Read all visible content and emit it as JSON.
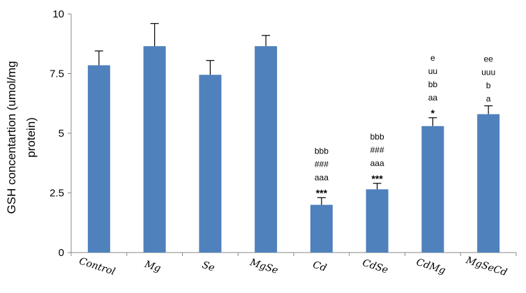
{
  "chart_data": {
    "type": "bar",
    "title": "",
    "xlabel": "",
    "ylabel_lines": [
      "GSH concentartion (umol/mg",
      "protein)"
    ],
    "ylim": [
      0,
      10
    ],
    "yticks": [
      {
        "value": 0,
        "label": "0"
      },
      {
        "value": 2.5,
        "label": "2.5"
      },
      {
        "value": 5,
        "label": "5"
      },
      {
        "value": 7.5,
        "label": "7.5"
      },
      {
        "value": 10,
        "label": "10"
      }
    ],
    "categories": [
      "Control",
      "Mg",
      "Se",
      "MgSe",
      "Cd",
      "CdSe",
      "CdMg",
      "MgSeCd"
    ],
    "values": [
      7.85,
      8.65,
      7.45,
      8.65,
      2.0,
      2.65,
      5.3,
      5.8
    ],
    "errors": [
      0.6,
      0.95,
      0.6,
      0.45,
      0.3,
      0.25,
      0.35,
      0.35
    ],
    "bar_color": "#4f81bd",
    "grid": false,
    "annotations": [
      [],
      [],
      [],
      [],
      [
        "bbb",
        "###",
        "aaa",
        "***"
      ],
      [
        "bbb",
        "###",
        "aaa",
        "***"
      ],
      [
        "e",
        "uu",
        "bb",
        "aa",
        "*"
      ],
      [
        "ee",
        "uuu",
        "b",
        "a"
      ]
    ]
  }
}
